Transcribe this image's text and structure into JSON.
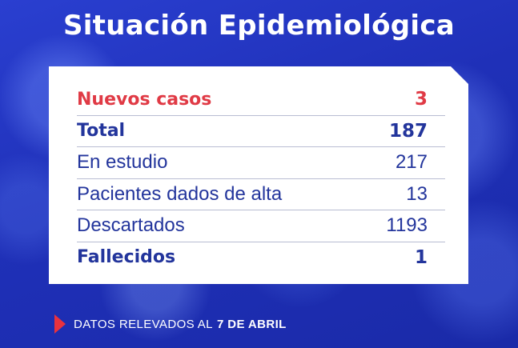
{
  "title": "Situación Epidemiológica",
  "rows": [
    {
      "label": "Nuevos casos",
      "value": "3"
    },
    {
      "label": "Total",
      "value": "187"
    },
    {
      "label": "En estudio",
      "value": "217"
    },
    {
      "label": "Pacientes dados de alta",
      "value": "13"
    },
    {
      "label": "Descartados",
      "value": "1193"
    },
    {
      "label": "Fallecidos",
      "value": "1"
    }
  ],
  "footer": {
    "prefix": "DATOS RELEVADOS AL",
    "date": "7 DE ABRIL"
  },
  "colors": {
    "background": "#1f30b8",
    "text_blue": "#23359c",
    "accent_red": "#e03a45"
  }
}
